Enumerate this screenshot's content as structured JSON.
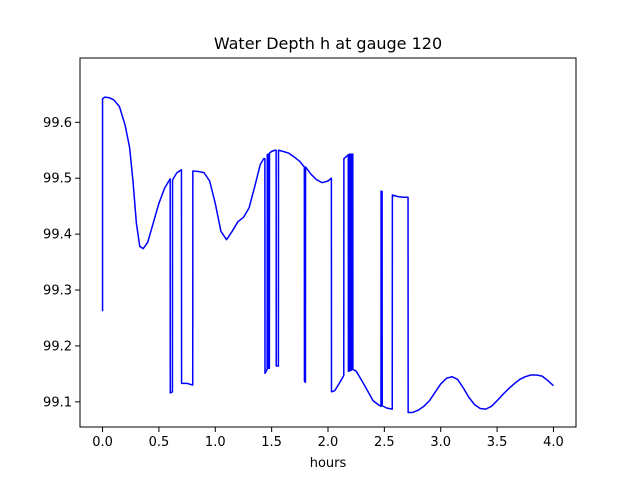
{
  "chart_data": {
    "type": "line",
    "title": "Water Depth h at gauge 120",
    "xlabel": "hours",
    "ylabel": "",
    "xlim": [
      -0.2,
      4.2
    ],
    "ylim": [
      99.055,
      99.715
    ],
    "x_ticks": [
      0.0,
      0.5,
      1.0,
      1.5,
      2.0,
      2.5,
      3.0,
      3.5,
      4.0
    ],
    "x_tick_labels": [
      "0.0",
      "0.5",
      "1.0",
      "1.5",
      "2.0",
      "2.5",
      "3.0",
      "3.5",
      "4.0"
    ],
    "y_ticks": [
      99.1,
      99.2,
      99.3,
      99.4,
      99.5,
      99.6
    ],
    "y_tick_labels": [
      "99.1",
      "99.2",
      "99.3",
      "99.4",
      "99.5",
      "99.6"
    ],
    "grid": false,
    "legend": "none",
    "series": [
      {
        "color": "#0000ff",
        "points": [
          [
            0.0,
            99.262
          ],
          [
            0.0,
            99.642
          ],
          [
            0.02,
            99.645
          ],
          [
            0.06,
            99.644
          ],
          [
            0.1,
            99.64
          ],
          [
            0.15,
            99.628
          ],
          [
            0.2,
            99.595
          ],
          [
            0.24,
            99.555
          ],
          [
            0.27,
            99.495
          ],
          [
            0.3,
            99.42
          ],
          [
            0.33,
            99.378
          ],
          [
            0.36,
            99.374
          ],
          [
            0.4,
            99.385
          ],
          [
            0.45,
            99.42
          ],
          [
            0.5,
            99.455
          ],
          [
            0.55,
            99.482
          ],
          [
            0.6,
            99.499
          ],
          [
            0.601,
            99.116
          ],
          [
            0.62,
            99.118
          ],
          [
            0.621,
            99.497
          ],
          [
            0.66,
            99.51
          ],
          [
            0.7,
            99.515
          ],
          [
            0.701,
            99.133
          ],
          [
            0.75,
            99.133
          ],
          [
            0.8,
            99.13
          ],
          [
            0.801,
            99.513
          ],
          [
            0.85,
            99.512
          ],
          [
            0.9,
            99.51
          ],
          [
            0.95,
            99.495
          ],
          [
            1.0,
            99.455
          ],
          [
            1.05,
            99.405
          ],
          [
            1.1,
            99.39
          ],
          [
            1.15,
            99.405
          ],
          [
            1.2,
            99.422
          ],
          [
            1.25,
            99.43
          ],
          [
            1.3,
            99.447
          ],
          [
            1.35,
            99.485
          ],
          [
            1.4,
            99.525
          ],
          [
            1.43,
            99.535
          ],
          [
            1.44,
            99.535
          ],
          [
            1.441,
            99.151
          ],
          [
            1.46,
            99.158
          ],
          [
            1.461,
            99.542
          ],
          [
            1.47,
            99.543
          ],
          [
            1.471,
            99.16
          ],
          [
            1.48,
            99.16
          ],
          [
            1.481,
            99.545
          ],
          [
            1.5,
            99.548
          ],
          [
            1.53,
            99.55
          ],
          [
            1.54,
            99.55
          ],
          [
            1.541,
            99.164
          ],
          [
            1.56,
            99.164
          ],
          [
            1.561,
            99.55
          ],
          [
            1.6,
            99.548
          ],
          [
            1.65,
            99.545
          ],
          [
            1.7,
            99.538
          ],
          [
            1.75,
            99.53
          ],
          [
            1.79,
            99.52
          ],
          [
            1.791,
            99.137
          ],
          [
            1.8,
            99.135
          ],
          [
            1.801,
            99.52
          ],
          [
            1.85,
            99.507
          ],
          [
            1.9,
            99.497
          ],
          [
            1.95,
            99.492
          ],
          [
            2.0,
            99.495
          ],
          [
            2.03,
            99.5
          ],
          [
            2.031,
            99.118
          ],
          [
            2.06,
            99.12
          ],
          [
            2.1,
            99.133
          ],
          [
            2.14,
            99.147
          ],
          [
            2.141,
            99.535
          ],
          [
            2.17,
            99.54
          ],
          [
            2.18,
            99.542
          ],
          [
            2.181,
            99.155
          ],
          [
            2.19,
            99.155
          ],
          [
            2.191,
            99.543
          ],
          [
            2.2,
            99.543
          ],
          [
            2.201,
            99.156
          ],
          [
            2.21,
            99.157
          ],
          [
            2.211,
            99.543
          ],
          [
            2.22,
            99.543
          ],
          [
            2.221,
            99.158
          ],
          [
            2.25,
            99.155
          ],
          [
            2.3,
            99.138
          ],
          [
            2.35,
            99.12
          ],
          [
            2.4,
            99.102
          ],
          [
            2.46,
            99.093
          ],
          [
            2.47,
            99.092
          ],
          [
            2.471,
            99.477
          ],
          [
            2.48,
            99.476
          ],
          [
            2.481,
            99.093
          ],
          [
            2.52,
            99.089
          ],
          [
            2.57,
            99.087
          ],
          [
            2.571,
            99.47
          ],
          [
            2.62,
            99.467
          ],
          [
            2.67,
            99.466
          ],
          [
            2.71,
            99.466
          ],
          [
            2.711,
            99.081
          ],
          [
            2.75,
            99.081
          ],
          [
            2.8,
            99.085
          ],
          [
            2.85,
            99.092
          ],
          [
            2.9,
            99.102
          ],
          [
            2.95,
            99.117
          ],
          [
            3.0,
            99.132
          ],
          [
            3.05,
            99.142
          ],
          [
            3.1,
            99.145
          ],
          [
            3.15,
            99.14
          ],
          [
            3.2,
            99.125
          ],
          [
            3.25,
            99.108
          ],
          [
            3.3,
            99.095
          ],
          [
            3.35,
            99.088
          ],
          [
            3.4,
            99.087
          ],
          [
            3.45,
            99.092
          ],
          [
            3.5,
            99.102
          ],
          [
            3.55,
            99.113
          ],
          [
            3.6,
            99.123
          ],
          [
            3.65,
            99.132
          ],
          [
            3.7,
            99.14
          ],
          [
            3.75,
            99.145
          ],
          [
            3.8,
            99.148
          ],
          [
            3.85,
            99.148
          ],
          [
            3.9,
            99.146
          ],
          [
            3.95,
            99.138
          ],
          [
            4.0,
            99.129
          ]
        ]
      }
    ]
  }
}
